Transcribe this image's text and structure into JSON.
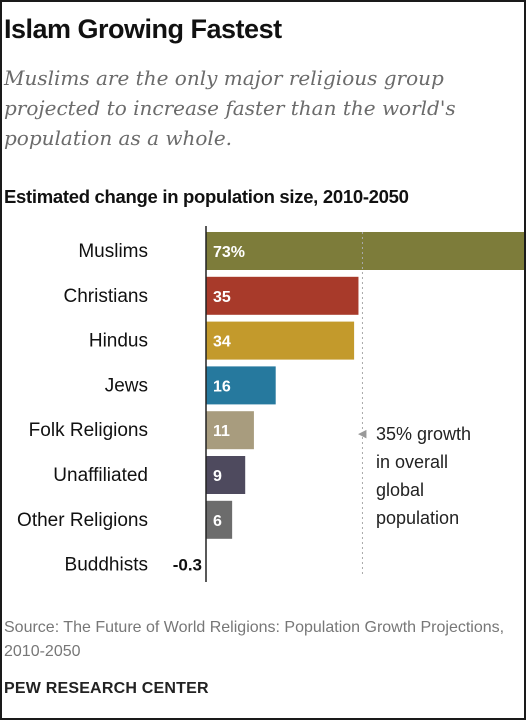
{
  "header": {
    "title": "Islam Growing Fastest",
    "subtitle": "Muslims are the only major religious group projected to increase faster than the world's population as a whole."
  },
  "chart_heading": "Estimated change in population size, 2010-2050",
  "note": {
    "line1": "35% growth",
    "line2": "in overall",
    "line3": "global",
    "line4": "population"
  },
  "source": "Source: The Future of World Religions: Population Growth Projections, 2010-2050",
  "footer": "PEW RESEARCH CENTER",
  "chart_data": {
    "type": "bar",
    "orientation": "horizontal",
    "title": "Estimated change in population size, 2010-2050",
    "categories": [
      "Muslims",
      "Christians",
      "Hindus",
      "Jews",
      "Folk Religions",
      "Unaffiliated",
      "Other Religions",
      "Buddhists"
    ],
    "values": [
      73,
      35,
      34,
      16,
      11,
      9,
      6,
      -0.3
    ],
    "value_labels": [
      "73%",
      "35",
      "34",
      "16",
      "11",
      "9",
      "6",
      "-0.3"
    ],
    "colors": [
      "#7d7c3a",
      "#a83a2a",
      "#c39a2c",
      "#26799e",
      "#a89c7e",
      "#4e4a5e",
      "#6c6c6c",
      "#6c6c6c"
    ],
    "reference_line": {
      "value": 35
    },
    "xlim": [
      0,
      73
    ],
    "unit": "%",
    "grid": false,
    "legend": "none"
  }
}
